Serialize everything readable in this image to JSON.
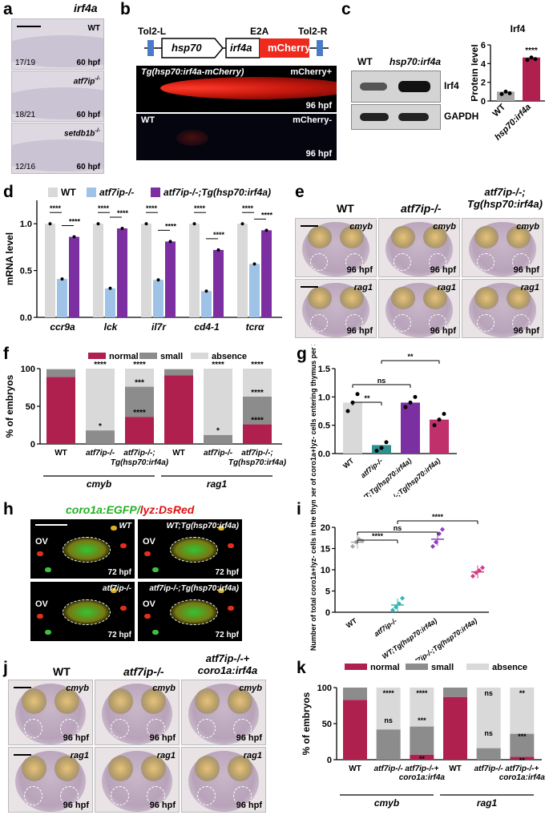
{
  "panel_letters": [
    "a",
    "b",
    "c",
    "d",
    "e",
    "f",
    "g",
    "h",
    "i",
    "j",
    "k"
  ],
  "a": {
    "title": "irf4a",
    "rows": [
      {
        "genotype": "WT",
        "count": "17/19",
        "stage": "60 hpf"
      },
      {
        "genotype": "atf7ip",
        "count": "18/21",
        "stage": "60 hpf"
      },
      {
        "genotype": "setdb1b",
        "count": "12/16",
        "stage": "60 hpf"
      }
    ],
    "mut_sup": "-/-"
  },
  "b": {
    "tol2_l": "Tol2-L",
    "tol2_r": "Tol2-R",
    "e2a": "E2A",
    "hsp70": "hsp70",
    "irf4a": "irf4a",
    "mcherry": "mCherry",
    "tg_label": "Tg(hsp70:irf4a-mCherry)",
    "pos": "mCherry+",
    "wt": "WT",
    "neg": "mCherry-",
    "stage": "96 hpf"
  },
  "c": {
    "wt": "WT",
    "tg": "hsp70:irf4a",
    "irf4": "Irf4",
    "gapdh": "GAPDH",
    "chart_title": "Irf4",
    "ylabel": "Protein level",
    "stars": "****"
  },
  "d": {
    "legend": [
      "WT",
      "atf7ip-/-",
      "atf7ip-/-;Tg(hsp70:irf4a)"
    ],
    "ylabel": "mRNA level",
    "genes": [
      "ccr9a",
      "lck",
      "il7r",
      "cd4-1",
      "tcrα"
    ],
    "stars": "****"
  },
  "e": {
    "cols": [
      "WT",
      "atf7ip-/-",
      "atf7ip-/-; Tg(hsp70:irf4a)"
    ],
    "markers": [
      "cmyb",
      "rag1"
    ],
    "stage": "96 hpf"
  },
  "f": {
    "legend": [
      "normal",
      "small",
      "absence"
    ],
    "ylabel": "% of embryos",
    "groups": [
      "cmyb",
      "rag1"
    ],
    "xlabels": [
      "WT",
      "atf7ip-/-",
      "atf7ip-/-; Tg(hsp70:irf4a)",
      "WT",
      "atf7ip-/-",
      "atf7ip-/-; Tg(hsp70:irf4a)"
    ],
    "sig_top": [
      "****",
      "****",
      "****",
      "****"
    ],
    "sig_mid": [
      "*",
      "***",
      "****",
      "*",
      "****",
      "****"
    ]
  },
  "g": {
    "ylabel": "Number of coro1a+lyz- cells entering thymus per 30 minutes",
    "xlabels": [
      "WT",
      "atf7ip-/-",
      "WT;Tg(hsp70:irf4a)",
      "atf7ip-/-;Tg(hsp70:irf4a)"
    ],
    "sig": [
      "**",
      "ns",
      "**"
    ]
  },
  "h": {
    "title_a": "coro1a:EGFP",
    "title_b": "lyz:DsRed",
    "panels": [
      {
        "geno": "WT",
        "ov": "OV",
        "stage": "72 hpf"
      },
      {
        "geno": "WT;Tg(hsp70:irf4a)",
        "ov": "OV",
        "stage": "72 hpf"
      },
      {
        "geno": "atf7ip-/-",
        "ov": "OV",
        "stage": "72 hpf"
      },
      {
        "geno": "atf7ip-/-;Tg(hsp70:irf4a)",
        "ov": "OV",
        "stage": "72 hpf"
      }
    ]
  },
  "i": {
    "ylabel": "Number of total coro1a+lyz- cells in the thymus",
    "xlabels": [
      "WT",
      "atf7ip-/-",
      "WT;Tg(hsp70:irf4a)",
      "atf7ip-/-;Tg(hsp70:irf4a)"
    ],
    "sig": [
      "****",
      "ns",
      "****"
    ]
  },
  "j": {
    "cols": [
      "WT",
      "atf7ip-/-",
      "atf7ip-/-+ coro1a:irf4a"
    ],
    "markers": [
      "cmyb",
      "rag1"
    ],
    "stage": "96 hpf"
  },
  "k": {
    "legend": [
      "normal",
      "small",
      "absence"
    ],
    "ylabel": "% of embryos",
    "groups": [
      "cmyb",
      "rag1"
    ],
    "xlabels": [
      "WT",
      "atf7ip-/-",
      "atf7ip-/-+ coro1a:irf4a",
      "WT",
      "atf7ip-/-",
      "atf7ip-/-+ coro1a:irf4a"
    ],
    "sig": [
      "****",
      "ns",
      "****",
      "***",
      "**",
      "ns",
      "ns",
      "**",
      "***",
      "**"
    ]
  },
  "chart_data": [
    {
      "panel": "c",
      "type": "bar",
      "title": "Irf4",
      "ylabel": "Protein level",
      "categories": [
        "WT",
        "hsp70:irf4a"
      ],
      "values": [
        1.0,
        4.65
      ],
      "ylim": [
        0,
        6
      ],
      "colors": [
        "#aaaaaa",
        "#b0204e"
      ]
    },
    {
      "panel": "d",
      "type": "bar",
      "ylabel": "mRNA level",
      "categories": [
        "ccr9a",
        "lck",
        "il7r",
        "cd4-1",
        "tcrα"
      ],
      "ylim": [
        0,
        1.25
      ],
      "series": [
        {
          "name": "WT",
          "values": [
            1.0,
            1.0,
            1.0,
            1.0,
            1.0
          ],
          "color": "#d9d9d9"
        },
        {
          "name": "atf7ip-/-",
          "values": [
            0.41,
            0.31,
            0.4,
            0.28,
            0.57
          ],
          "color": "#9ec3e6"
        },
        {
          "name": "atf7ip-/-;Tg(hsp70:irf4a)",
          "values": [
            0.86,
            0.95,
            0.81,
            0.72,
            0.93
          ],
          "color": "#7b2fa0"
        }
      ]
    },
    {
      "panel": "f",
      "type": "bar",
      "ylabel": "% of embryos",
      "ylim": [
        0,
        100
      ],
      "categories": [
        "WT",
        "atf7ip-/-",
        "atf7ip-/-;Tg(hsp70:irf4a)",
        "WT",
        "atf7ip-/-",
        "atf7ip-/-;Tg(hsp70:irf4a)"
      ],
      "series": [
        {
          "name": "normal",
          "values": [
            89,
            0,
            36,
            91,
            0,
            26
          ],
          "color": "#b0204e"
        },
        {
          "name": "small",
          "values": [
            10,
            18,
            40,
            8,
            12,
            37
          ],
          "color": "#8c8c8c"
        },
        {
          "name": "absence",
          "values": [
            1,
            82,
            24,
            1,
            88,
            37
          ],
          "color": "#d9d9d9"
        }
      ]
    },
    {
      "panel": "g",
      "type": "bar",
      "ylabel": "Number of coro1a+lyz- cells entering thymus per 30 minutes",
      "ylim": [
        0,
        1.5
      ],
      "categories": [
        "WT",
        "atf7ip-/-",
        "WT;Tg(hsp70:irf4a)",
        "atf7ip-/-;Tg(hsp70:irf4a)"
      ],
      "values": [
        0.9,
        0.15,
        0.9,
        0.6
      ],
      "colors": [
        "#d9d9d9",
        "#2f8f8f",
        "#7b2fa0",
        "#c0306a"
      ]
    },
    {
      "panel": "i",
      "type": "scatter",
      "ylabel": "Number of total coro1a+lyz- cells in the thymus",
      "ylim": [
        0,
        20
      ],
      "categories": [
        "WT",
        "atf7ip-/-",
        "WT;Tg(hsp70:irf4a)",
        "atf7ip-/-;Tg(hsp70:irf4a)"
      ],
      "values": [
        16.5,
        1.7,
        17.2,
        9.5
      ],
      "colors": [
        "#aaaaaa",
        "#2fb8b0",
        "#8e3fc0",
        "#d63a86"
      ]
    },
    {
      "panel": "k",
      "type": "bar",
      "ylabel": "% of embryos",
      "ylim": [
        0,
        100
      ],
      "categories": [
        "WT",
        "atf7ip-/-",
        "atf7ip-/-+coro1a:irf4a",
        "WT",
        "atf7ip-/-",
        "atf7ip-/-+coro1a:irf4a"
      ],
      "series": [
        {
          "name": "normal",
          "values": [
            83,
            0,
            7,
            87,
            0,
            4
          ],
          "color": "#b0204e"
        },
        {
          "name": "small",
          "values": [
            17,
            42,
            39,
            13,
            16,
            32
          ],
          "color": "#8c8c8c"
        },
        {
          "name": "absence",
          "values": [
            0,
            58,
            54,
            0,
            84,
            64
          ],
          "color": "#d9d9d9"
        }
      ]
    }
  ]
}
